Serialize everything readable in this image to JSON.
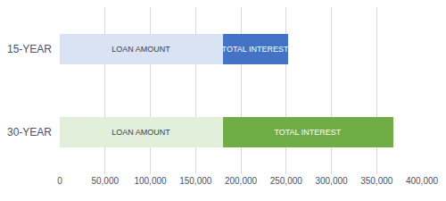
{
  "chart_data": {
    "type": "bar",
    "orientation": "horizontal",
    "stacked": true,
    "grid": true,
    "categories": [
      "15-YEAR",
      "30-YEAR"
    ],
    "series": [
      {
        "name": "LOAN AMOUNT",
        "colors": [
          "#dae3f3",
          "#e2efda"
        ],
        "values": [
          180000,
          180000
        ]
      },
      {
        "name": "TOTAL INTEREST",
        "colors": [
          "#4472c4",
          "#70ad47"
        ],
        "values": [
          72000,
          188000
        ]
      }
    ],
    "xlim": [
      0,
      400000
    ],
    "xticks": [
      0,
      {
        "value": 50000,
        "label": "50,000"
      },
      {
        "value": 100000,
        "label": "100,000"
      },
      {
        "value": 150000,
        "label": "150,000"
      },
      {
        "value": 200000,
        "label": "200,000"
      },
      {
        "value": 250000,
        "label": "250,000"
      },
      {
        "value": 300000,
        "label": "300,000"
      },
      {
        "value": 350000,
        "label": "350,000"
      },
      {
        "value": 400000,
        "label": "400,000"
      }
    ]
  }
}
